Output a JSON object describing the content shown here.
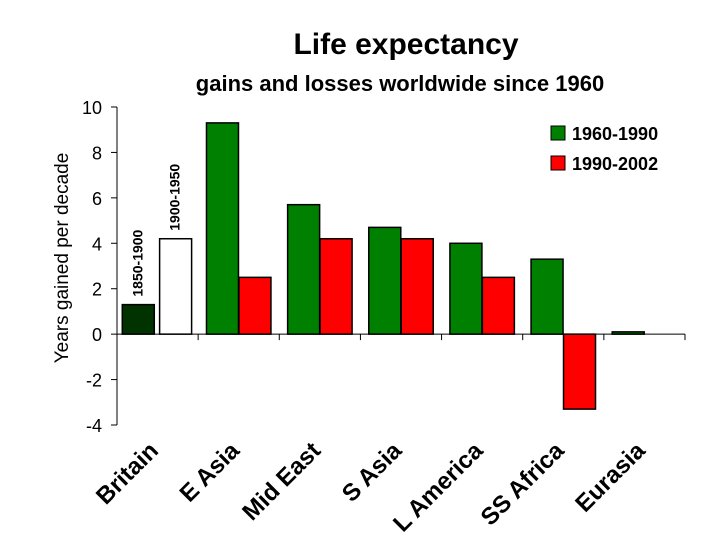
{
  "chart_data": {
    "type": "bar",
    "title": "Life expectancy",
    "subtitle": "gains and losses worldwide since 1960",
    "ylabel": "Years gained per decade",
    "xlabel": "",
    "ylim": [
      -4,
      10
    ],
    "yticks": [
      10,
      8,
      6,
      4,
      2,
      0,
      -2,
      -4
    ],
    "ytick_labels": [
      "10",
      "8",
      "6",
      "4",
      "2",
      "0",
      "-2",
      "-4"
    ],
    "categories": [
      "Britain",
      "E Asia",
      "Mid East",
      "S Asia",
      "L America",
      "SS Africa",
      "Eurasia"
    ],
    "historical": [
      {
        "label": "1850-1900",
        "value": 1.3,
        "color": "#003300"
      },
      {
        "label": "1900-1950",
        "value": 4.2,
        "color": "#ffffff"
      }
    ],
    "series": [
      {
        "name": "1960-1990",
        "color": "#008000",
        "values": [
          null,
          9.3,
          5.7,
          4.7,
          4.0,
          3.3,
          0.1
        ]
      },
      {
        "name": "1990-2002",
        "color": "#ff0000",
        "values": [
          null,
          2.5,
          4.2,
          4.2,
          2.5,
          -3.3,
          null
        ]
      }
    ],
    "legend_position": "top-right",
    "grid": false
  }
}
